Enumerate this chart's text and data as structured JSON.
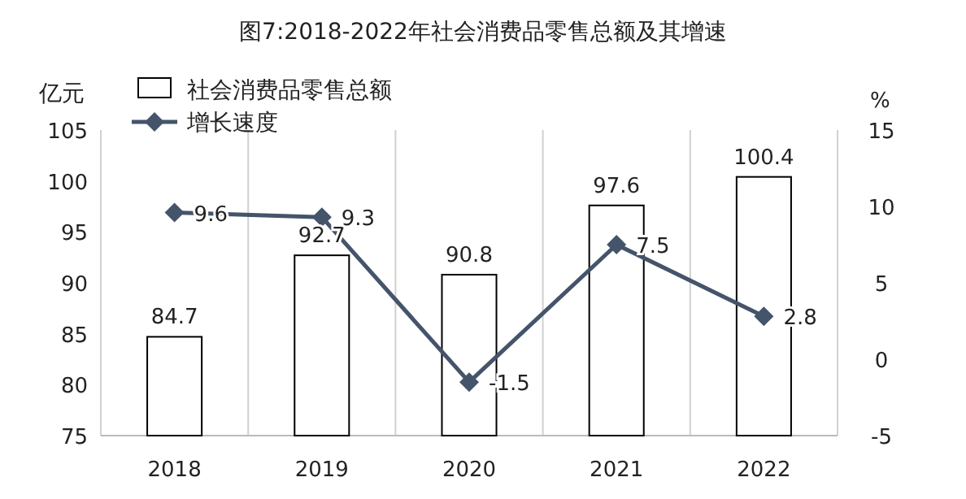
{
  "chart_data": {
    "type": "bar",
    "title": "图7:2018-2022年社会消费品零售总额及其增速",
    "ylabel": "亿元",
    "y2label": "%",
    "categories": [
      "2018",
      "2019",
      "2020",
      "2021",
      "2022"
    ],
    "series": [
      {
        "name": "社会消费品零售总额",
        "color": "#ffffff",
        "values": [
          84.7,
          92.7,
          90.8,
          97.6,
          100.4
        ]
      },
      {
        "name": "增长速度",
        "type": "line",
        "axis": "y2",
        "color": "#44546a",
        "values": [
          9.6,
          9.3,
          -1.5,
          7.5,
          2.8
        ]
      }
    ],
    "ylim": [
      75,
      105
    ],
    "yticks": [
      75,
      80,
      85,
      90,
      95,
      100,
      105
    ],
    "y2lim": [
      -5,
      15
    ],
    "y2ticks": [
      -5,
      0,
      5,
      10,
      15
    ],
    "data_labels": true,
    "legend": "top left",
    "marker": "diamond",
    "grid": "x"
  }
}
